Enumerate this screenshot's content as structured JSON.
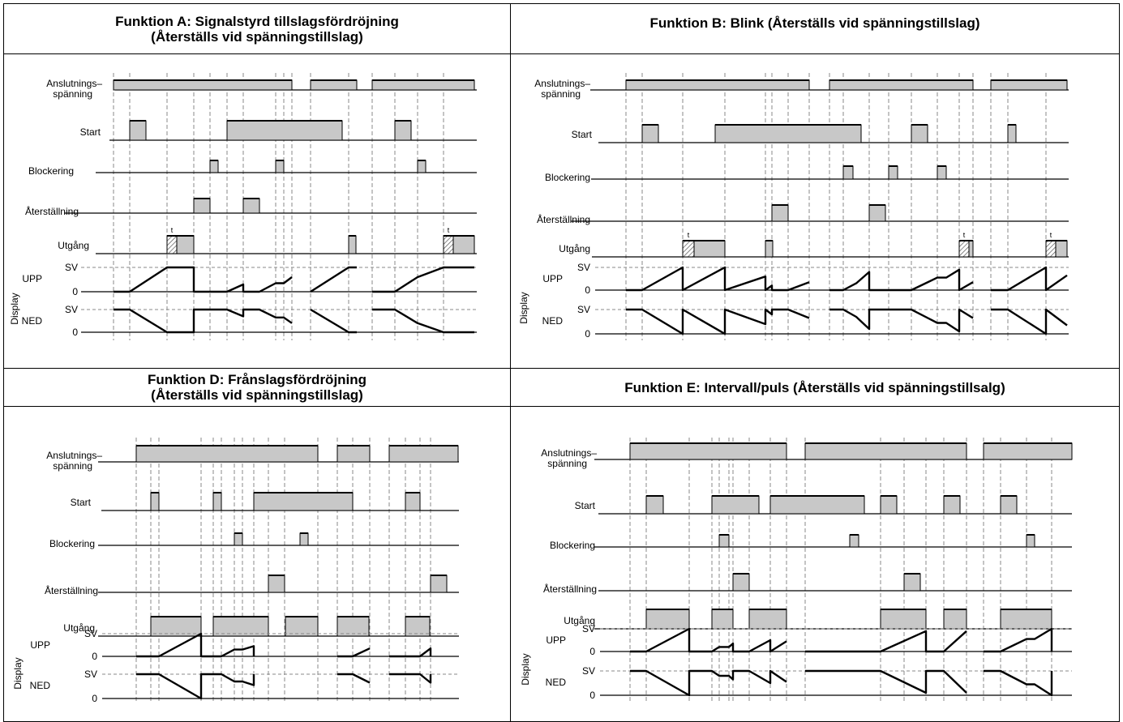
{
  "labels": {
    "supply_line1": "Anslutnings–",
    "supply_line2": "spänning",
    "start": "Start",
    "blocking": "Blockering",
    "reset": "Återställning",
    "output": "Utgång",
    "display": "Display",
    "up": "UPP",
    "down": "NED",
    "sv": "SV",
    "zero": "0",
    "t": "t"
  },
  "colors": {
    "fill": "#c8c8c8",
    "line": "#000000",
    "dash": "#888888"
  },
  "panels": [
    {
      "id": "A",
      "title_line1": "Funktion A: Signalstyrd tillslagsfördröjning",
      "title_line2": "(Återställs vid spänningstillslag)",
      "supply": [
        [
          140,
          360
        ],
        [
          383,
          440
        ],
        [
          459,
          585
        ]
      ],
      "start": [
        [
          160,
          180
        ],
        [
          280,
          422
        ],
        [
          487,
          507
        ]
      ],
      "blocking": [
        [
          259,
          269
        ],
        [
          340,
          350
        ],
        [
          515,
          525
        ]
      ],
      "reset": [
        [
          239,
          259
        ],
        [
          300,
          320
        ]
      ],
      "output": [
        [
          206,
          239
        ],
        [
          430,
          439
        ],
        [
          547,
          585
        ]
      ],
      "hatch": [
        [
          206,
          218
        ],
        [
          547,
          559
        ]
      ],
      "t_marks": [
        212,
        553
      ],
      "cursors": [
        140,
        160,
        206,
        239,
        259,
        280,
        300,
        340,
        350,
        360,
        383,
        430,
        459,
        487,
        515,
        547
      ],
      "up": [
        [
          140,
          0
        ],
        [
          160,
          0
        ],
        [
          206,
          1
        ],
        [
          239,
          1
        ],
        [
          239,
          0
        ],
        [
          280,
          0
        ],
        [
          300,
          0.3
        ],
        [
          300,
          0
        ],
        [
          320,
          0
        ],
        [
          340,
          0.35
        ],
        [
          350,
          0.35
        ],
        [
          360,
          0.6
        ],
        null,
        [
          383,
          0
        ],
        [
          430,
          1
        ],
        [
          440,
          1
        ],
        null,
        [
          459,
          0
        ],
        [
          487,
          0
        ],
        [
          515,
          0.6
        ],
        [
          547,
          1
        ],
        [
          585,
          1
        ]
      ],
      "down": [
        [
          140,
          1
        ],
        [
          160,
          1
        ],
        [
          206,
          0
        ],
        [
          239,
          0
        ],
        [
          239,
          1
        ],
        [
          280,
          1
        ],
        [
          300,
          0.7
        ],
        [
          300,
          1
        ],
        [
          320,
          1
        ],
        [
          340,
          0.65
        ],
        [
          350,
          0.65
        ],
        [
          360,
          0.4
        ],
        null,
        [
          383,
          1
        ],
        [
          430,
          0
        ],
        [
          440,
          0
        ],
        null,
        [
          459,
          1
        ],
        [
          487,
          1
        ],
        [
          515,
          0.4
        ],
        [
          547,
          0
        ],
        [
          585,
          0
        ]
      ]
    },
    {
      "id": "B",
      "title_line1": "Funktion B: Blink (Återställs vid spänningstillslag)",
      "title_line2": "",
      "supply": [
        [
          772,
          998
        ],
        [
          1023,
          1200
        ],
        [
          1222,
          1316
        ]
      ],
      "start": [
        [
          792,
          812
        ],
        [
          882,
          1062
        ],
        [
          1124,
          1144
        ],
        [
          1243,
          1253
        ]
      ],
      "blocking": [
        [
          1040,
          1052
        ],
        [
          1096,
          1107
        ],
        [
          1156,
          1167
        ]
      ],
      "reset": [
        [
          952,
          972
        ],
        [
          1072,
          1092
        ]
      ],
      "output": [
        [
          842,
          894
        ],
        [
          944,
          953
        ],
        [
          1183,
          1200
        ],
        [
          1290,
          1316
        ]
      ],
      "hatch": [
        [
          842,
          856
        ],
        [
          1183,
          1195
        ],
        [
          1290,
          1302
        ]
      ],
      "t_marks": [
        849,
        1189,
        1296
      ],
      "cursors": [
        772,
        792,
        842,
        894,
        944,
        952,
        972,
        998,
        1023,
        1040,
        1072,
        1096,
        1124,
        1156,
        1183,
        1200,
        1222,
        1243,
        1290
      ],
      "up": [
        [
          772,
          0
        ],
        [
          792,
          0
        ],
        [
          842,
          1
        ],
        [
          842,
          0
        ],
        [
          894,
          1
        ],
        [
          894,
          0
        ],
        [
          944,
          0.6
        ],
        [
          944,
          0
        ],
        [
          952,
          0.2
        ],
        [
          952,
          0
        ],
        [
          972,
          0
        ],
        [
          998,
          0.35
        ],
        null,
        [
          1023,
          0
        ],
        [
          1040,
          0
        ],
        [
          1056,
          0.3
        ],
        [
          1072,
          0.8
        ],
        [
          1072,
          0
        ],
        [
          1092,
          0
        ],
        [
          1124,
          0
        ],
        [
          1156,
          0.55
        ],
        [
          1167,
          0.55
        ],
        [
          1183,
          0.9
        ],
        [
          1183,
          0
        ],
        [
          1200,
          0.35
        ],
        null,
        [
          1222,
          0
        ],
        [
          1243,
          0
        ],
        [
          1290,
          1
        ],
        [
          1290,
          0
        ],
        [
          1316,
          0.65
        ]
      ],
      "down": [
        [
          772,
          1
        ],
        [
          792,
          1
        ],
        [
          842,
          0
        ],
        [
          842,
          1
        ],
        [
          894,
          0
        ],
        [
          894,
          1
        ],
        [
          944,
          0.4
        ],
        [
          944,
          1
        ],
        [
          952,
          0.8
        ],
        [
          952,
          1
        ],
        [
          972,
          1
        ],
        [
          998,
          0.65
        ],
        null,
        [
          1023,
          1
        ],
        [
          1040,
          1
        ],
        [
          1056,
          0.7
        ],
        [
          1072,
          0.2
        ],
        [
          1072,
          1
        ],
        [
          1092,
          1
        ],
        [
          1124,
          1
        ],
        [
          1156,
          0.45
        ],
        [
          1167,
          0.45
        ],
        [
          1183,
          0.1
        ],
        [
          1183,
          1
        ],
        [
          1200,
          0.65
        ],
        null,
        [
          1222,
          1
        ],
        [
          1243,
          1
        ],
        [
          1290,
          0
        ],
        [
          1290,
          1
        ],
        [
          1316,
          0.35
        ]
      ]
    },
    {
      "id": "D",
      "title_line1": "Funktion D: Frånslagsfördröjning",
      "title_line2": "(Återställs vid spänningstillslag)",
      "supply": [
        [
          168,
          392
        ],
        [
          416,
          456
        ],
        [
          480,
          565
        ]
      ],
      "start": [
        [
          186,
          196
        ],
        [
          263,
          273
        ],
        [
          313,
          435
        ],
        [
          500,
          518
        ]
      ],
      "blocking": [
        [
          289,
          299
        ],
        [
          370,
          380
        ]
      ],
      "reset": [
        [
          331,
          351
        ],
        [
          531,
          551
        ]
      ],
      "output": [
        [
          186,
          248
        ],
        [
          263,
          331
        ],
        [
          352,
          392
        ],
        [
          416,
          455
        ],
        [
          500,
          530
        ]
      ],
      "hatch": [],
      "t_marks": [],
      "cursors": [
        168,
        186,
        196,
        248,
        263,
        273,
        289,
        299,
        313,
        331,
        351,
        392,
        416,
        435,
        456,
        480,
        500,
        518,
        531
      ],
      "up": [
        [
          168,
          0
        ],
        [
          196,
          0
        ],
        [
          248,
          1
        ],
        [
          248,
          0
        ],
        [
          273,
          0
        ],
        [
          289,
          0.3
        ],
        [
          299,
          0.3
        ],
        [
          313,
          0.45
        ],
        [
          313,
          0
        ],
        null,
        [
          416,
          0
        ],
        [
          435,
          0
        ],
        [
          456,
          0.35
        ],
        null,
        [
          480,
          0
        ],
        [
          518,
          0
        ],
        [
          531,
          0.35
        ],
        [
          531,
          0
        ]
      ],
      "down": [
        [
          168,
          1
        ],
        [
          196,
          1
        ],
        [
          248,
          0
        ],
        [
          248,
          1
        ],
        [
          273,
          1
        ],
        [
          289,
          0.7
        ],
        [
          299,
          0.7
        ],
        [
          313,
          0.55
        ],
        [
          313,
          1
        ],
        null,
        [
          416,
          1
        ],
        [
          435,
          1
        ],
        [
          456,
          0.65
        ],
        null,
        [
          480,
          1
        ],
        [
          518,
          1
        ],
        [
          531,
          0.65
        ],
        [
          531,
          1
        ]
      ]
    },
    {
      "id": "E",
      "title_line1": "Funktion E: Intervall/puls (Återställs vid spänningstillsalg)",
      "title_line2": "",
      "supply": [
        [
          777,
          970
        ],
        [
          993,
          1192
        ],
        [
          1213,
          1322
        ]
      ],
      "start": [
        [
          797,
          818
        ],
        [
          878,
          936
        ],
        [
          950,
          1066
        ],
        [
          1086,
          1106
        ],
        [
          1164,
          1184
        ],
        [
          1234,
          1254
        ]
      ],
      "blocking": [
        [
          887,
          899
        ],
        [
          1048,
          1059
        ],
        [
          1266,
          1276
        ]
      ],
      "reset": [
        [
          904,
          924
        ],
        [
          1115,
          1135
        ]
      ],
      "output": [
        [
          797,
          850
        ],
        [
          878,
          904
        ],
        [
          924,
          970
        ],
        [
          1086,
          1142
        ],
        [
          1164,
          1192
        ],
        [
          1234,
          1297
        ]
      ],
      "hatch": [],
      "t_marks": [],
      "cursors": [
        777,
        797,
        850,
        878,
        887,
        899,
        904,
        924,
        950,
        970,
        993,
        1086,
        1115,
        1142,
        1164,
        1192,
        1213,
        1234,
        1266,
        1297
      ],
      "up": [
        [
          777,
          0
        ],
        [
          797,
          0
        ],
        [
          850,
          1
        ],
        [
          850,
          0
        ],
        [
          878,
          0
        ],
        [
          887,
          0.2
        ],
        [
          899,
          0.2
        ],
        [
          904,
          0.35
        ],
        [
          904,
          0
        ],
        [
          924,
          0
        ],
        [
          950,
          0.5
        ],
        [
          950,
          0
        ],
        [
          970,
          0.45
        ],
        null,
        [
          993,
          0
        ],
        [
          1086,
          0
        ],
        [
          1142,
          0.9
        ],
        [
          1142,
          0
        ],
        [
          1164,
          0
        ],
        [
          1192,
          0.9
        ],
        null,
        [
          1213,
          0
        ],
        [
          1234,
          0
        ],
        [
          1266,
          0.55
        ],
        [
          1276,
          0.55
        ],
        [
          1297,
          1
        ],
        [
          1297,
          0
        ]
      ],
      "down": [
        [
          777,
          1
        ],
        [
          797,
          1
        ],
        [
          850,
          0
        ],
        [
          850,
          1
        ],
        [
          878,
          1
        ],
        [
          887,
          0.8
        ],
        [
          899,
          0.8
        ],
        [
          904,
          0.65
        ],
        [
          904,
          1
        ],
        [
          924,
          1
        ],
        [
          950,
          0.5
        ],
        [
          950,
          1
        ],
        [
          970,
          0.55
        ],
        null,
        [
          993,
          1
        ],
        [
          1086,
          1
        ],
        [
          1142,
          0.1
        ],
        [
          1142,
          1
        ],
        [
          1164,
          1
        ],
        [
          1192,
          0.1
        ],
        null,
        [
          1213,
          1
        ],
        [
          1234,
          1
        ],
        [
          1266,
          0.45
        ],
        [
          1276,
          0.45
        ],
        [
          1297,
          0
        ],
        [
          1297,
          1
        ]
      ]
    }
  ]
}
